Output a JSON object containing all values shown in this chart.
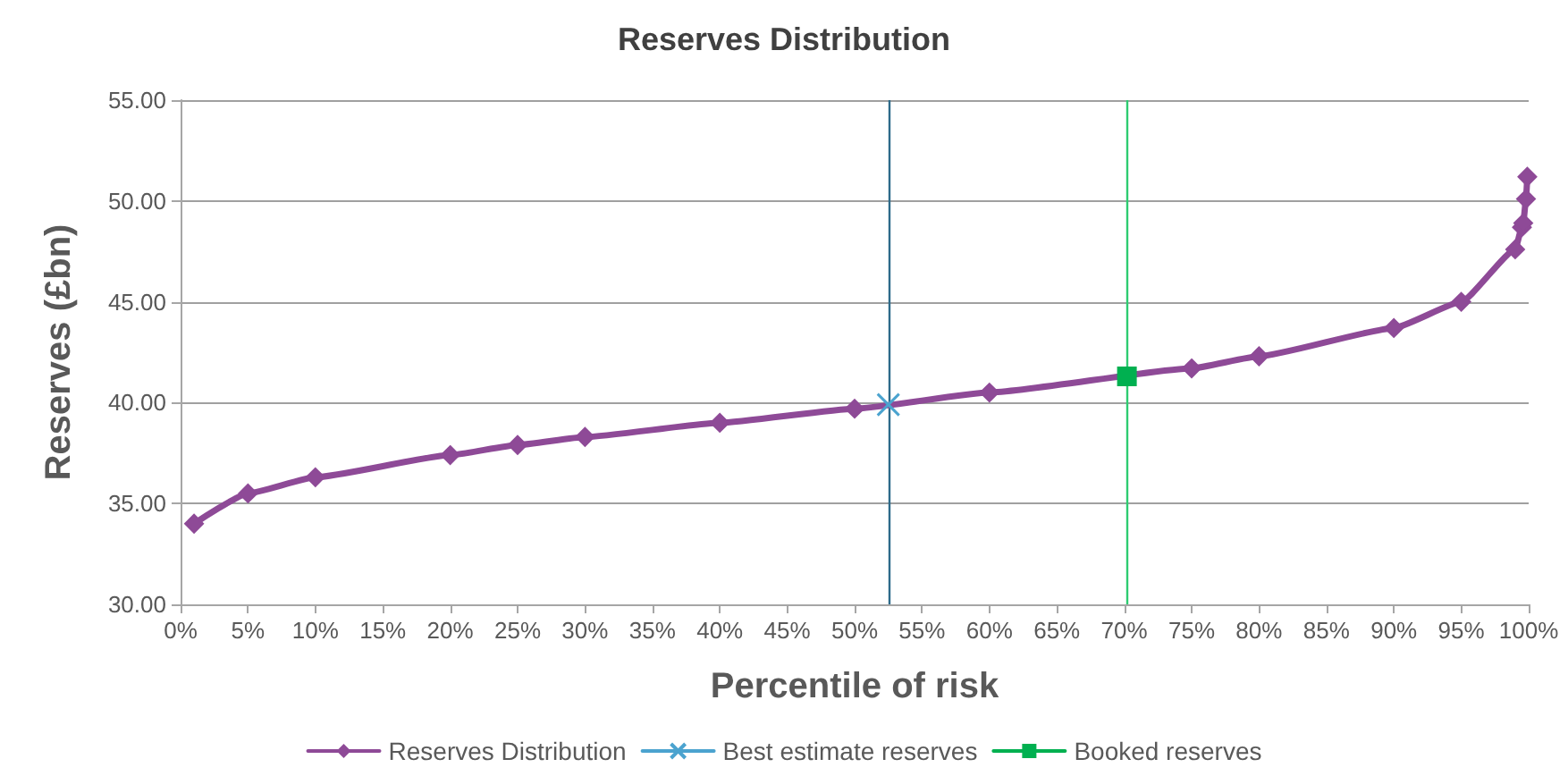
{
  "chart_data": {
    "type": "line",
    "title": "Reserves Distribution",
    "xlabel": "Percentile of risk",
    "ylabel": "Reserves (£bn)",
    "series": [
      {
        "name": "Reserves Distribution",
        "color": "#8e4a97",
        "marker": "diamond",
        "x": [
          1,
          5,
          10,
          20,
          25,
          30,
          40,
          50,
          60,
          75,
          80,
          90,
          95,
          99,
          99.5,
          99.6,
          99.8,
          99.9
        ],
        "values": [
          34.0,
          35.5,
          36.3,
          37.4,
          37.9,
          38.3,
          39.0,
          39.7,
          40.5,
          41.7,
          42.3,
          43.7,
          45.0,
          47.6,
          48.7,
          48.9,
          50.1,
          51.2
        ]
      },
      {
        "name": "Best estimate reserves",
        "color": "#4ba3cf",
        "marker": "cross",
        "x": [
          52.5
        ],
        "values": [
          39.9
        ]
      },
      {
        "name": "Booked reserves",
        "color": "#00b050",
        "marker": "square",
        "x": [
          70.2
        ],
        "values": [
          41.3
        ]
      }
    ],
    "ref_lines": [
      {
        "axis": "x",
        "value": 52.5,
        "color": "#2e6b8a"
      },
      {
        "axis": "x",
        "value": 70.2,
        "color": "#2ecc71"
      }
    ],
    "xlim": [
      0,
      100
    ],
    "xticks": [
      {
        "value": 0,
        "label": "0%"
      },
      {
        "value": 5,
        "label": "5%"
      },
      {
        "value": 10,
        "label": "10%"
      },
      {
        "value": 15,
        "label": "15%"
      },
      {
        "value": 20,
        "label": "20%"
      },
      {
        "value": 25,
        "label": "25%"
      },
      {
        "value": 30,
        "label": "30%"
      },
      {
        "value": 35,
        "label": "35%"
      },
      {
        "value": 40,
        "label": "40%"
      },
      {
        "value": 45,
        "label": "45%"
      },
      {
        "value": 50,
        "label": "50%"
      },
      {
        "value": 55,
        "label": "55%"
      },
      {
        "value": 60,
        "label": "60%"
      },
      {
        "value": 65,
        "label": "65%"
      },
      {
        "value": 70,
        "label": "70%"
      },
      {
        "value": 75,
        "label": "75%"
      },
      {
        "value": 80,
        "label": "80%"
      },
      {
        "value": 85,
        "label": "85%"
      },
      {
        "value": 90,
        "label": "90%"
      },
      {
        "value": 95,
        "label": "95%"
      },
      {
        "value": 100,
        "label": "100%"
      }
    ],
    "ylim": [
      30,
      55
    ],
    "yticks": [
      {
        "value": 30,
        "label": "30.00"
      },
      {
        "value": 35,
        "label": "35.00"
      },
      {
        "value": 40,
        "label": "40.00"
      },
      {
        "value": 45,
        "label": "45.00"
      },
      {
        "value": 50,
        "label": "50.00"
      },
      {
        "value": 55,
        "label": "55.00"
      }
    ],
    "grid": "y",
    "legend": "bottom"
  }
}
